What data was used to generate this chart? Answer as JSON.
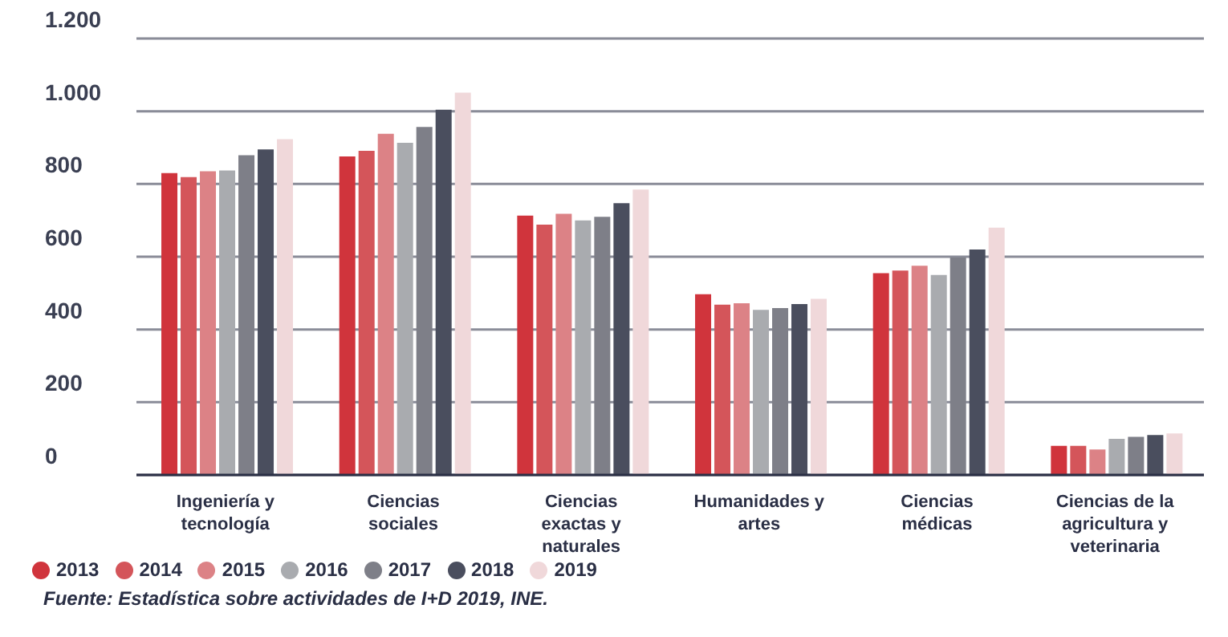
{
  "chart_data": {
    "type": "bar",
    "categories": [
      "Ingeniería y tecnología",
      "Ciencias sociales",
      "Ciencias exactas y naturales",
      "Humanidades y artes",
      "Ciencias médicas",
      "Ciencias de la agricultura y veterinaria"
    ],
    "series": [
      {
        "name": "2013",
        "color": "#d0343c",
        "values": [
          830,
          876,
          713,
          497,
          555,
          80
        ]
      },
      {
        "name": "2014",
        "color": "#d4555a",
        "values": [
          819,
          891,
          688,
          468,
          562,
          80
        ]
      },
      {
        "name": "2015",
        "color": "#dc8286",
        "values": [
          835,
          938,
          718,
          472,
          575,
          70
        ]
      },
      {
        "name": "2016",
        "color": "#a9abaf",
        "values": [
          837,
          913,
          700,
          454,
          550,
          99
        ]
      },
      {
        "name": "2017",
        "color": "#7e7f88",
        "values": [
          879,
          957,
          710,
          459,
          598,
          105
        ]
      },
      {
        "name": "2018",
        "color": "#4a4e5e",
        "values": [
          895,
          1004,
          747,
          470,
          620,
          110
        ]
      },
      {
        "name": "2019",
        "color": "#f0d8da",
        "values": [
          923,
          1051,
          785,
          484,
          680,
          114
        ]
      }
    ],
    "ylim": [
      0,
      1200
    ],
    "yticks": [
      0,
      {
        "value": 200,
        "label": "200"
      },
      {
        "value": 400,
        "label": "400"
      },
      {
        "value": 600,
        "label": "600"
      },
      {
        "value": 800,
        "label": "800"
      },
      {
        "value": 1000,
        "label": "1.000"
      },
      {
        "value": 1200,
        "label": "1.200"
      }
    ],
    "grid": "y",
    "legend": "bottom left",
    "annotations": [
      "Fuente: Estadística sobre actividades de I+D 2019, INE."
    ]
  }
}
